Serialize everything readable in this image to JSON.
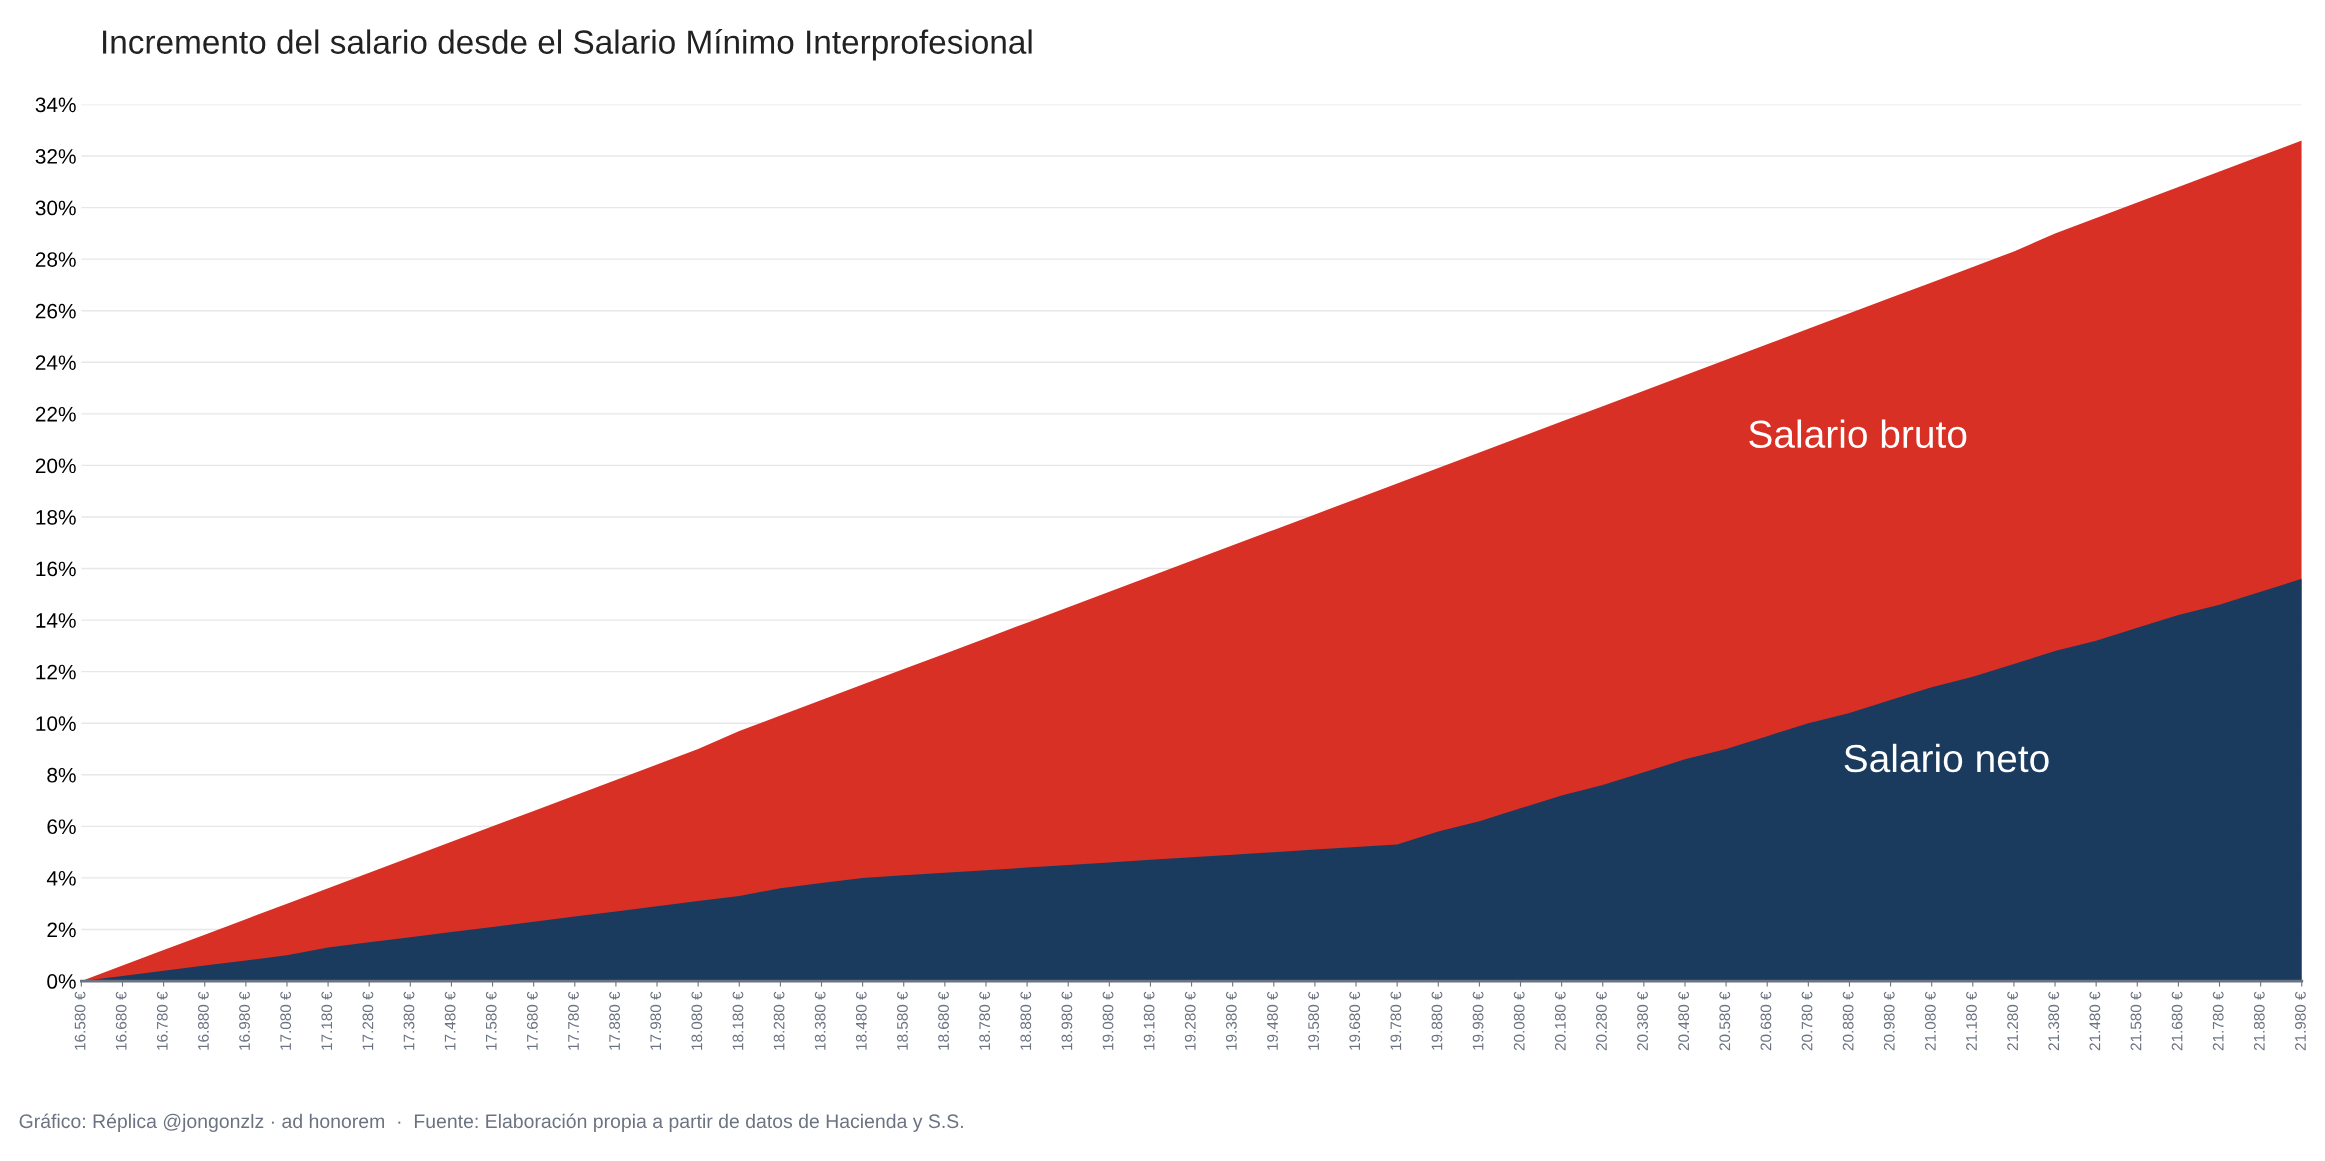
{
  "chart_data": {
    "type": "area",
    "title": "Incremento del salario desde el Salario Mínimo Interprofesional",
    "categories": [
      "16.580 €",
      "16.680 €",
      "16.780 €",
      "16.880 €",
      "16.980 €",
      "17.080 €",
      "17.180 €",
      "17.280 €",
      "17.380 €",
      "17.480 €",
      "17.580 €",
      "17.680 €",
      "17.780 €",
      "17.880 €",
      "17.980 €",
      "18.080 €",
      "18.180 €",
      "18.280 €",
      "18.380 €",
      "18.480 €",
      "18.580 €",
      "18.680 €",
      "18.780 €",
      "18.880 €",
      "18.980 €",
      "19.080 €",
      "19.180 €",
      "19.280 €",
      "19.380 €",
      "19.480 €",
      "19.580 €",
      "19.680 €",
      "19.780 €",
      "19.880 €",
      "19.980 €",
      "20.080 €",
      "20.180 €",
      "20.280 €",
      "20.380 €",
      "20.480 €",
      "20.580 €",
      "20.680 €",
      "20.780 €",
      "20.880 €",
      "20.980 €",
      "21.080 €",
      "21.180 €",
      "21.280 €",
      "21.380 €",
      "21.480 €",
      "21.580 €",
      "21.680 €",
      "21.780 €",
      "21.880 €",
      "21.980 €"
    ],
    "series": [
      {
        "name": "Salario bruto",
        "color": "#d93025",
        "values": [
          0,
          0.6,
          1.2,
          1.8,
          2.4,
          3.0,
          3.6,
          4.2,
          4.8,
          5.4,
          6.0,
          6.6,
          7.2,
          7.8,
          8.4,
          9.0,
          9.7,
          10.3,
          10.9,
          11.5,
          12.1,
          12.7,
          13.3,
          13.9,
          14.5,
          15.1,
          15.7,
          16.3,
          16.9,
          17.5,
          18.1,
          18.7,
          19.3,
          19.9,
          20.5,
          21.1,
          21.7,
          22.3,
          22.9,
          23.5,
          24.1,
          24.7,
          25.3,
          25.9,
          26.5,
          27.1,
          27.7,
          28.3,
          29.0,
          29.6,
          30.2,
          30.8,
          31.4,
          32.0,
          32.6
        ]
      },
      {
        "name": "Salario neto",
        "color": "#1a3a5e",
        "values": [
          0,
          0.2,
          0.4,
          0.6,
          0.8,
          1.0,
          1.3,
          1.5,
          1.7,
          1.9,
          2.1,
          2.3,
          2.5,
          2.7,
          2.9,
          3.1,
          3.3,
          3.6,
          3.8,
          4.0,
          4.1,
          4.2,
          4.3,
          4.4,
          4.5,
          4.6,
          4.7,
          4.8,
          4.9,
          5.0,
          5.1,
          5.2,
          5.3,
          5.8,
          6.2,
          6.7,
          7.2,
          7.6,
          8.1,
          8.6,
          9.0,
          9.5,
          10.0,
          10.4,
          10.9,
          11.4,
          11.8,
          12.3,
          12.8,
          13.2,
          13.7,
          14.2,
          14.6,
          15.1,
          15.6
        ]
      }
    ],
    "ylim": [
      0,
      34
    ],
    "yticks": [
      {
        "value": 0,
        "label": "0%"
      },
      {
        "value": 2,
        "label": "2%"
      },
      {
        "value": 4,
        "label": "4%"
      },
      {
        "value": 6,
        "label": "6%"
      },
      {
        "value": 8,
        "label": "8%"
      },
      {
        "value": 10,
        "label": "10%"
      },
      {
        "value": 12,
        "label": "12%"
      },
      {
        "value": 14,
        "label": "14%"
      },
      {
        "value": 16,
        "label": "16%"
      },
      {
        "value": 18,
        "label": "18%"
      },
      {
        "value": 20,
        "label": "20%"
      },
      {
        "value": 22,
        "label": "22%"
      },
      {
        "value": 24,
        "label": "24%"
      },
      {
        "value": 26,
        "label": "26%"
      },
      {
        "value": 28,
        "label": "28%"
      },
      {
        "value": 30,
        "label": "30%"
      },
      {
        "value": 32,
        "label": "32%"
      },
      {
        "value": 34,
        "label": "34%"
      }
    ],
    "grid": "y",
    "annotations": [
      "Gráfico: Réplica @jongonzlz · ad honorem  ·  Fuente: Elaboración propia a partir de datos de Hacienda y S.S."
    ]
  }
}
